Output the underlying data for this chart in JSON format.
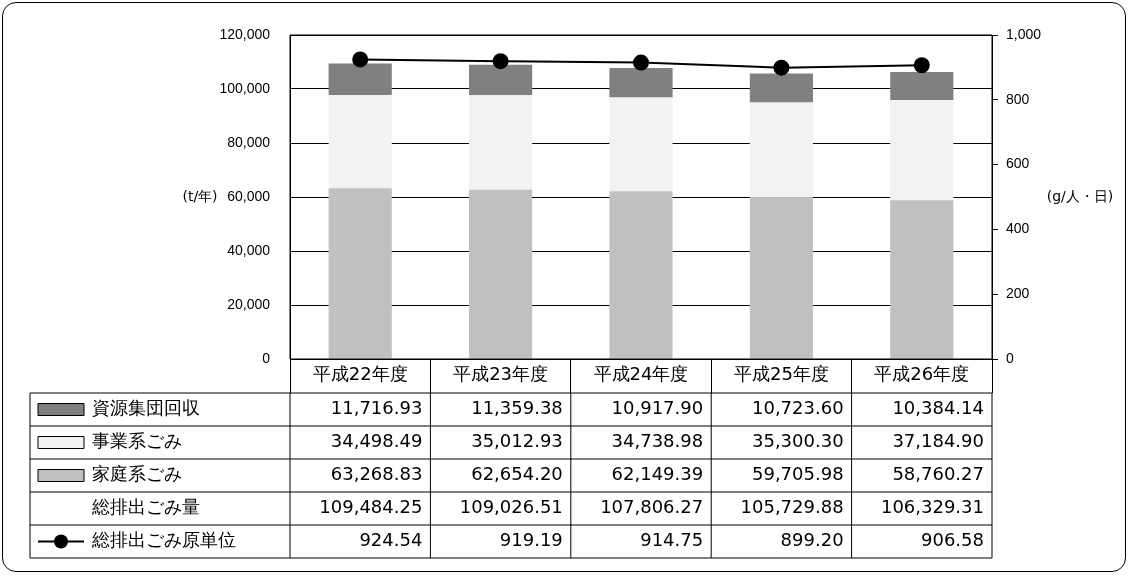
{
  "chart_data": {
    "type": "bar",
    "stacked": true,
    "categories": [
      "平成22年度",
      "平成23年度",
      "平成24年度",
      "平成25年度",
      "平成26年度"
    ],
    "series": [
      {
        "name": "家庭系ごみ",
        "color": "#c0c0c0",
        "values": [
          63268.83,
          62654.2,
          62149.39,
          59705.98,
          58760.27
        ],
        "value_labels": [
          "63,268.83",
          "62,654.20",
          "62,149.39",
          "59,705.98",
          "58,760.27"
        ]
      },
      {
        "name": "事業系ごみ",
        "color": "#f2f2f2",
        "values": [
          34498.49,
          35012.93,
          34738.98,
          35300.3,
          37184.9
        ],
        "value_labels": [
          "34,498.49",
          "35,012.93",
          "34,738.98",
          "35,300.30",
          "37,184.90"
        ]
      },
      {
        "name": "資源集団回収",
        "color": "#808080",
        "values": [
          11716.93,
          11359.38,
          10917.9,
          10723.6,
          10384.14
        ],
        "value_labels": [
          "11,716.93",
          "11,359.38",
          "10,917.90",
          "10,723.60",
          "10,384.14"
        ]
      },
      {
        "name": "総排出ごみ原単位",
        "type": "line",
        "axis": "y2",
        "color": "#000000",
        "values": [
          924.54,
          919.19,
          914.75,
          899.2,
          906.58
        ],
        "value_labels": [
          "924.54",
          "919.19",
          "914.75",
          "899.20",
          "906.58"
        ]
      }
    ],
    "annotations": [
      "総排出ごみ量",
      "109,484.25",
      "109,026.51",
      "107,806.27",
      "105,729.88",
      "106,329.31"
    ],
    "ylabel": "(t/年)",
    "y2label": "(g/人・日)",
    "ylim": [
      0,
      120000
    ],
    "yticks": [
      0,
      {
        "value": 20000,
        "label": "20,000"
      },
      {
        "value": 40000,
        "label": "40,000"
      },
      {
        "value": 60000,
        "label": "60,000"
      },
      {
        "value": 80000,
        "label": "80,000"
      },
      {
        "value": 100000,
        "label": "100,000"
      },
      {
        "value": 120000,
        "label": "120,000"
      }
    ],
    "y2lim": [
      0,
      1000
    ],
    "y2ticks": [
      0,
      200,
      400,
      600,
      800,
      {
        "value": 1000,
        "label": "1,000"
      }
    ],
    "grid": "y",
    "legend": "bottom",
    "marker": "circle",
    "line_style": "solid"
  }
}
